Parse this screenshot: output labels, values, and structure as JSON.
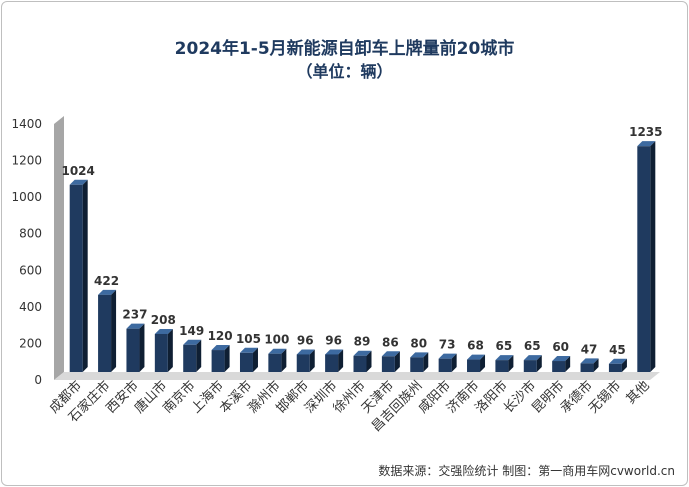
{
  "chart_data": {
    "type": "bar",
    "title": "2024年1-5月新能源自卸车上牌量前20城市",
    "subtitle": "（单位：辆）",
    "categories": [
      "成都市",
      "石家庄市",
      "西安市",
      "唐山市",
      "南京市",
      "上海市",
      "本溪市",
      "滁州市",
      "邯郸市",
      "深圳市",
      "徐州市",
      "天津市",
      "昌吉回族州",
      "咸阳市",
      "济南市",
      "洛阳市",
      "长沙市",
      "昆明市",
      "承德市",
      "无锡市",
      "其他"
    ],
    "values": [
      1024,
      422,
      237,
      208,
      149,
      120,
      105,
      100,
      96,
      96,
      89,
      86,
      80,
      73,
      68,
      65,
      65,
      60,
      47,
      45,
      1235
    ],
    "ylim": [
      0,
      1400
    ],
    "yticks": [
      0,
      200,
      400,
      600,
      800,
      1000,
      1200,
      1400
    ],
    "xlabel": "",
    "ylabel": "",
    "grid": false,
    "legend": "none",
    "bar_color": "#1f3a5f",
    "bar_side_color": "#0f1f33"
  },
  "footer": "数据来源：交强险统计 制图：第一商用车网cvworld.cn"
}
